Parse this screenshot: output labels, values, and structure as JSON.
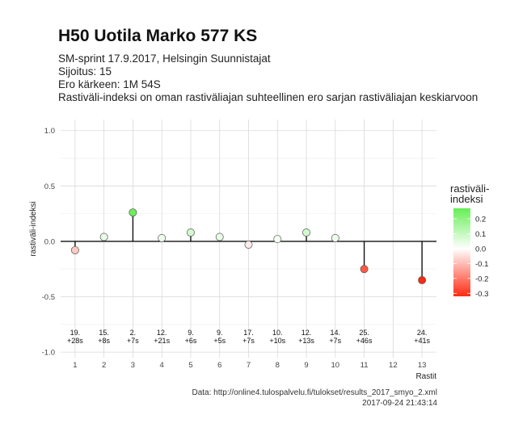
{
  "header": {
    "title": "H50 Uotila Marko 577 KS",
    "subtitles": [
      "SM-sprint 17.9.2017, Helsingin Suunnistajat",
      "Sijoitus: 15",
      "Ero kärkeen: 1M 54S",
      "Rastiväli-indeksi on oman rastiväliajan suhteellinen ero sarjan rastiväliajan keskiarvoon"
    ]
  },
  "caption": {
    "source": "Data: http://online4.tulospalvelu.fi/tulokset/results_2017_smyo_2.xml",
    "timestamp": "2017-09-24 21:43:14"
  },
  "chart_data": {
    "type": "scatter",
    "title": "H50 Uotila Marko 577 KS",
    "xlabel": "Rastit",
    "ylabel": "rastiväli-indeksi",
    "xlim": [
      0.5,
      13.5
    ],
    "ylim": [
      -1.05,
      1.1
    ],
    "x_ticks": [
      1,
      2,
      3,
      4,
      5,
      6,
      7,
      8,
      9,
      10,
      11,
      12,
      13
    ],
    "y_ticks": [
      1.0,
      0.5,
      0.0,
      -0.5,
      -1.0
    ],
    "y_tick_labels": [
      "1.0",
      "0.5",
      "0.0",
      "-0.5",
      "-1.0"
    ],
    "grid": true,
    "baseline": 0,
    "points": [
      {
        "x": 1,
        "y": -0.08,
        "rank": "19.",
        "diff": "+28s"
      },
      {
        "x": 2,
        "y": 0.04,
        "rank": "15.",
        "diff": "+8s"
      },
      {
        "x": 3,
        "y": 0.26,
        "rank": "2.",
        "diff": "+7s"
      },
      {
        "x": 4,
        "y": 0.03,
        "rank": "12.",
        "diff": "+21s"
      },
      {
        "x": 5,
        "y": 0.08,
        "rank": "9.",
        "diff": "+6s"
      },
      {
        "x": 6,
        "y": 0.04,
        "rank": "9.",
        "diff": "+5s"
      },
      {
        "x": 7,
        "y": -0.03,
        "rank": "17.",
        "diff": "+7s"
      },
      {
        "x": 8,
        "y": 0.02,
        "rank": "10.",
        "diff": "+10s"
      },
      {
        "x": 9,
        "y": 0.08,
        "rank": "12.",
        "diff": "+13s"
      },
      {
        "x": 10,
        "y": 0.03,
        "rank": "14.",
        "diff": "+7s"
      },
      {
        "x": 11,
        "y": -0.25,
        "rank": "25.",
        "diff": "+46s"
      },
      {
        "x": 13,
        "y": -0.35,
        "rank": "24.",
        "diff": "+41s"
      }
    ],
    "legend": {
      "title_lines": [
        "rastiväli-",
        "indeksi"
      ],
      "placement": "right",
      "range": [
        -0.32,
        0.27
      ],
      "ticks": [
        0.2,
        0.1,
        0.0,
        -0.1,
        -0.2,
        -0.3
      ],
      "tick_labels": [
        "0.2",
        "0.1",
        "0.0",
        "-0.1",
        "-0.2",
        "-0.3"
      ],
      "colors": {
        "high": "#66ee55",
        "mid": "#ffffff",
        "low": "#ff2a12"
      }
    }
  }
}
